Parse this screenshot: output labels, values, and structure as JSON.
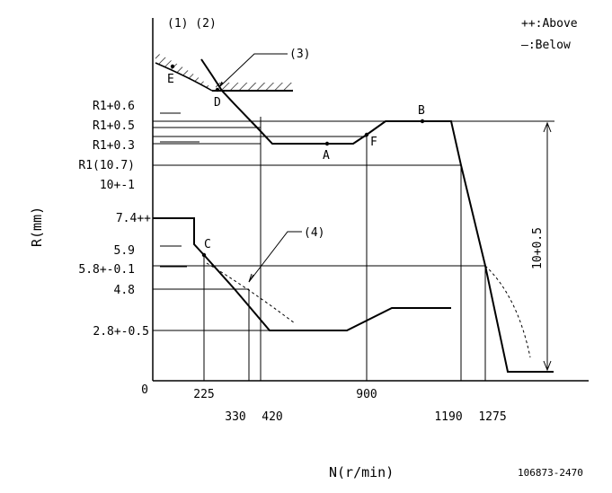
{
  "header": {
    "markers": "(1) (2)",
    "legend_above": "++:Above",
    "legend_below": "—:Below"
  },
  "callouts": {
    "c3": "(3)",
    "c4": "(4)"
  },
  "points": {
    "A": "A",
    "B": "B",
    "C": "C",
    "D": "D",
    "E": "E",
    "F": "F"
  },
  "y_labels": {
    "r1_06": "R1+0.6",
    "r1_05": "R1+0.5",
    "r1_03": "R1+0.3",
    "r1_107": "R1(10.7)",
    "r10": "10+-1",
    "r74": "7.4++",
    "r59": "5.9",
    "r58": "5.8+-0.1",
    "r48": "4.8",
    "r28": "2.8+-0.5",
    "r0": "0"
  },
  "x_labels": {
    "n225": "225",
    "n330": "330",
    "n420": "420",
    "n900": "900",
    "n1190": "1190",
    "n1275": "1275"
  },
  "axis_titles": {
    "y": "R(mm)",
    "x": "N(r/min)"
  },
  "dimension_label": "10+0.5",
  "reference": "106873-2470"
}
